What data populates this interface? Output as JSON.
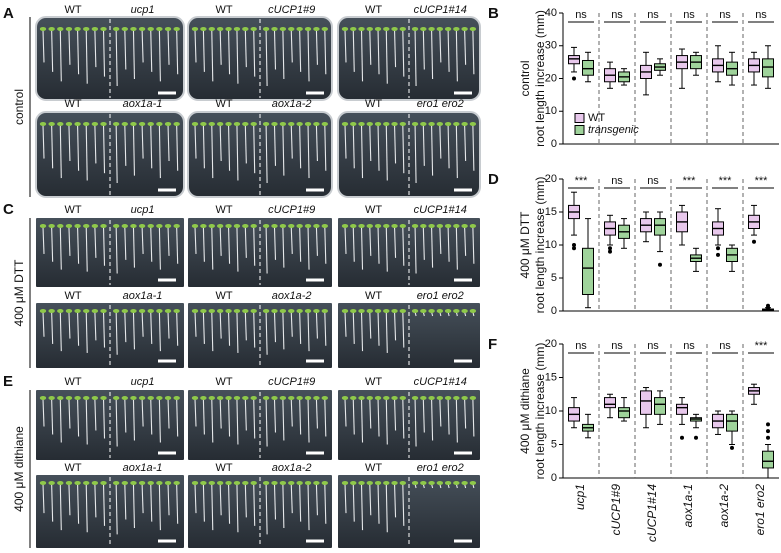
{
  "photos": [
    {
      "letter": "A",
      "condition": "control",
      "rows": [
        [
          [
            "WT",
            "ucp1"
          ],
          [
            "WT",
            "cUCP1#9"
          ],
          [
            "WT",
            "cUCP1#14"
          ]
        ],
        [
          [
            "WT",
            "aox1a-1"
          ],
          [
            "WT",
            "aox1a-2"
          ],
          [
            "WT",
            "ero1 ero2"
          ]
        ]
      ]
    },
    {
      "letter": "C",
      "condition": "400 μM DTT",
      "rows": [
        [
          [
            "WT",
            "ucp1"
          ],
          [
            "WT",
            "cUCP1#9"
          ],
          [
            "WT",
            "cUCP1#14"
          ]
        ],
        [
          [
            "WT",
            "aox1a-1"
          ],
          [
            "WT",
            "aox1a-2"
          ],
          [
            "WT",
            "ero1 ero2"
          ]
        ]
      ]
    },
    {
      "letter": "E",
      "condition": "400 μM dithiane",
      "rows": [
        [
          [
            "WT",
            "ucp1"
          ],
          [
            "WT",
            "cUCP1#9"
          ],
          [
            "WT",
            "cUCP1#14"
          ]
        ],
        [
          [
            "WT",
            "aox1a-1"
          ],
          [
            "WT",
            "aox1a-2"
          ],
          [
            "WT",
            "ero1 ero2"
          ]
        ]
      ]
    }
  ],
  "chart_data": [
    {
      "type": "box",
      "letter": "B",
      "condition": "control",
      "ylabel": "root length increase (mm)",
      "ylim": [
        0,
        40
      ],
      "yticks": [
        0,
        10,
        20,
        30,
        40
      ],
      "legend": "lower-left",
      "significance": [
        "ns",
        "ns",
        "ns",
        "ns",
        "ns",
        "ns"
      ],
      "series": [
        {
          "name": "WT",
          "color": "#e8c8ec",
          "values": [
            {
              "min": 22,
              "q1": 24.5,
              "median": 26,
              "q3": 27,
              "max": 29.5,
              "outliers": [
                20
              ]
            },
            {
              "min": 17,
              "q1": 19,
              "median": 21,
              "q3": 23,
              "max": 25,
              "outliers": []
            },
            {
              "min": 15,
              "q1": 20,
              "median": 22,
              "q3": 24,
              "max": 28,
              "outliers": []
            },
            {
              "min": 17,
              "q1": 23,
              "median": 25,
              "q3": 27,
              "max": 29,
              "outliers": []
            },
            {
              "min": 19,
              "q1": 22,
              "median": 24,
              "q3": 26,
              "max": 30,
              "outliers": []
            },
            {
              "min": 18,
              "q1": 22,
              "median": 24,
              "q3": 26,
              "max": 28,
              "outliers": []
            }
          ]
        },
        {
          "name": "transgenic",
          "color": "#9fd39b",
          "values": [
            {
              "min": 19,
              "q1": 21,
              "median": 23,
              "q3": 25.5,
              "max": 28,
              "outliers": []
            },
            {
              "min": 18,
              "q1": 19,
              "median": 20.5,
              "q3": 22,
              "max": 23,
              "outliers": []
            },
            {
              "min": 21,
              "q1": 22.5,
              "median": 23.5,
              "q3": 24.5,
              "max": 26,
              "outliers": []
            },
            {
              "min": 21,
              "q1": 23,
              "median": 25,
              "q3": 27,
              "max": 28,
              "outliers": []
            },
            {
              "min": 18,
              "q1": 21,
              "median": 23,
              "q3": 25,
              "max": 28,
              "outliers": []
            },
            {
              "min": 17,
              "q1": 20.5,
              "median": 23.5,
              "q3": 26,
              "max": 30,
              "outliers": []
            }
          ]
        }
      ]
    },
    {
      "type": "box",
      "letter": "D",
      "condition": "400 μM DTT",
      "ylabel": "root length increase (mm)",
      "ylim": [
        0,
        20
      ],
      "yticks": [
        0,
        5,
        10,
        15,
        20
      ],
      "significance": [
        "***",
        "ns",
        "ns",
        "***",
        "***",
        "***"
      ],
      "series": [
        {
          "color": "#e8c8ec",
          "values": [
            {
              "min": 11.5,
              "q1": 14,
              "median": 15,
              "q3": 16,
              "max": 18,
              "outliers": [
                9.5,
                10
              ]
            },
            {
              "min": 10,
              "q1": 11.5,
              "median": 12.5,
              "q3": 13.5,
              "max": 14.5,
              "outliers": [
                9,
                9.5
              ]
            },
            {
              "min": 10.5,
              "q1": 12,
              "median": 13,
              "q3": 14,
              "max": 15,
              "outliers": []
            },
            {
              "min": 10,
              "q1": 12,
              "median": 13.5,
              "q3": 15,
              "max": 16,
              "outliers": []
            },
            {
              "min": 10,
              "q1": 11.5,
              "median": 12.5,
              "q3": 13.5,
              "max": 15.5,
              "outliers": [
                8.5,
                9.5
              ]
            },
            {
              "min": 11.5,
              "q1": 12.5,
              "median": 13.5,
              "q3": 14.5,
              "max": 16,
              "outliers": [
                10.5
              ]
            }
          ]
        },
        {
          "color": "#9fd39b",
          "values": [
            {
              "min": 0.5,
              "q1": 2.5,
              "median": 6.5,
              "q3": 9.5,
              "max": 14,
              "outliers": []
            },
            {
              "min": 9.5,
              "q1": 11,
              "median": 12,
              "q3": 13,
              "max": 14,
              "outliers": []
            },
            {
              "min": 9,
              "q1": 11.5,
              "median": 13,
              "q3": 14,
              "max": 15,
              "outliers": [
                7
              ]
            },
            {
              "min": 6,
              "q1": 7.5,
              "median": 8,
              "q3": 8.5,
              "max": 9.5,
              "outliers": []
            },
            {
              "min": 6,
              "q1": 7.5,
              "median": 8.5,
              "q3": 9.5,
              "max": 10,
              "outliers": []
            },
            {
              "min": 0,
              "q1": 0.1,
              "median": 0.2,
              "q3": 0.3,
              "max": 0.5,
              "outliers": [
                0.5,
                0.8
              ]
            }
          ]
        }
      ]
    },
    {
      "type": "box",
      "letter": "F",
      "condition": "400 μM dithiane",
      "ylabel": "root length increase (mm)",
      "ylim": [
        0,
        20
      ],
      "yticks": [
        0,
        5,
        10,
        15,
        20
      ],
      "categories": [
        "ucp1",
        "cUCP1#9",
        "cUCP1#14",
        "aox1a-1",
        "aox1a-2",
        "ero1 ero2"
      ],
      "significance": [
        "ns",
        "ns",
        "ns",
        "ns",
        "ns",
        "***"
      ],
      "series": [
        {
          "color": "#e8c8ec",
          "values": [
            {
              "min": 7.5,
              "q1": 8.5,
              "median": 9.5,
              "q3": 10.5,
              "max": 12,
              "outliers": []
            },
            {
              "min": 9,
              "q1": 10.5,
              "median": 11,
              "q3": 12,
              "max": 12.5,
              "outliers": []
            },
            {
              "min": 7.5,
              "q1": 9.5,
              "median": 11.5,
              "q3": 13,
              "max": 13.5,
              "outliers": []
            },
            {
              "min": 8,
              "q1": 9.5,
              "median": 10.5,
              "q3": 11,
              "max": 12,
              "outliers": [
                6
              ]
            },
            {
              "min": 6.5,
              "q1": 7.5,
              "median": 8.5,
              "q3": 9.5,
              "max": 10,
              "outliers": []
            },
            {
              "min": 11,
              "q1": 12.5,
              "median": 13,
              "q3": 13.5,
              "max": 14,
              "outliers": []
            }
          ]
        },
        {
          "color": "#9fd39b",
          "values": [
            {
              "min": 6,
              "q1": 7,
              "median": 7.5,
              "q3": 8,
              "max": 9.5,
              "outliers": []
            },
            {
              "min": 8.5,
              "q1": 9,
              "median": 10,
              "q3": 10.5,
              "max": 12,
              "outliers": []
            },
            {
              "min": 8,
              "q1": 9.5,
              "median": 11,
              "q3": 12,
              "max": 13,
              "outliers": []
            },
            {
              "min": 7.5,
              "q1": 8.5,
              "median": 8.8,
              "q3": 9,
              "max": 9.5,
              "outliers": [
                6
              ]
            },
            {
              "min": 5,
              "q1": 7,
              "median": 8.5,
              "q3": 9.5,
              "max": 10,
              "outliers": [
                4.5
              ]
            },
            {
              "min": 0,
              "q1": 1.5,
              "median": 2.5,
              "q3": 4,
              "max": 5,
              "outliers": [
                6,
                7,
                8
              ]
            }
          ]
        }
      ]
    }
  ]
}
